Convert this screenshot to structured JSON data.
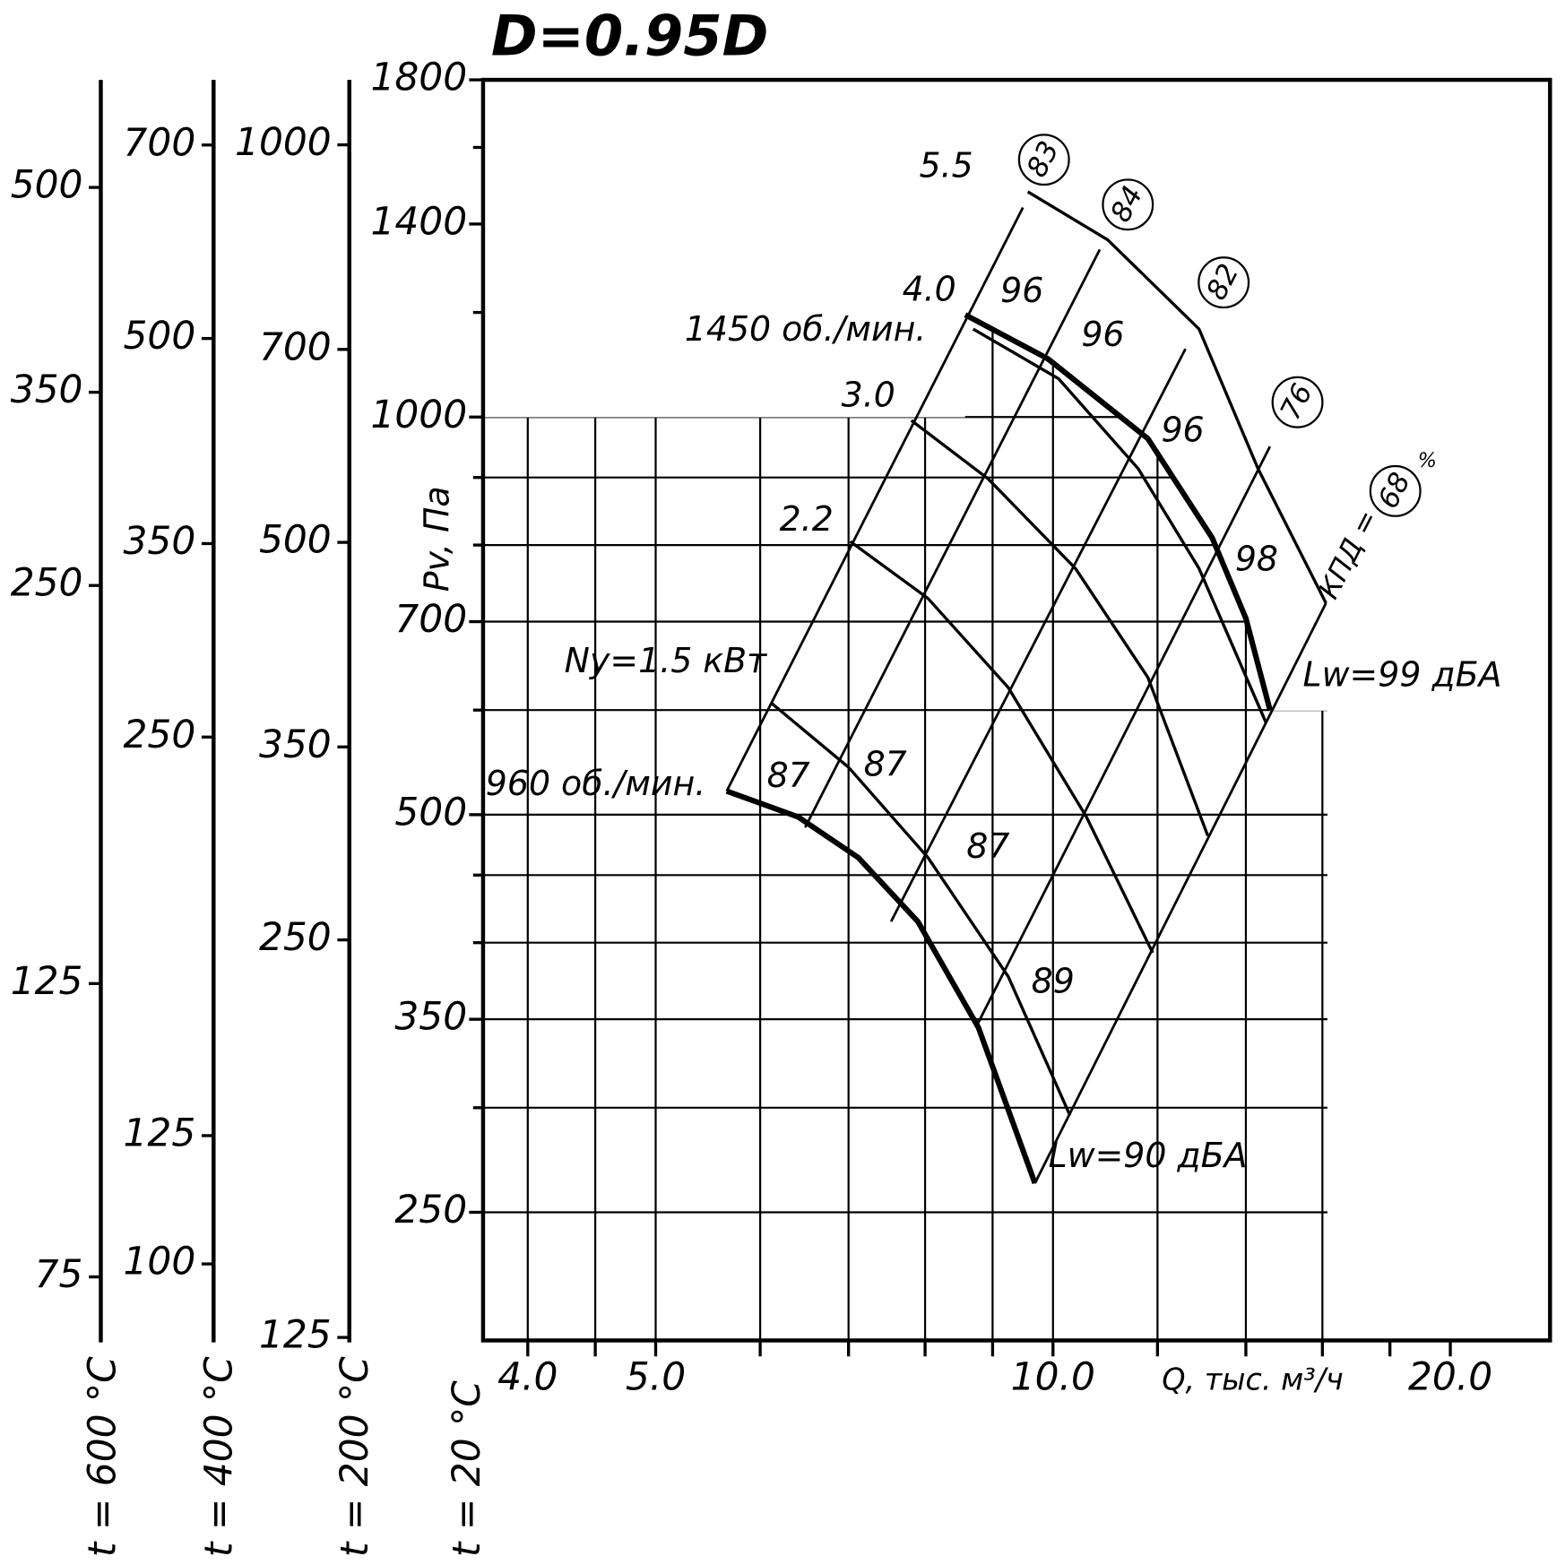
{
  "chart_data": {
    "type": "line",
    "title": "D=0.95D",
    "ylabel": "Pv, Па",
    "xlabel": "Q, тыс. м³/ч",
    "y_axis_caption": "t = 20 °C",
    "log_x": true,
    "log_y": true,
    "grid": true,
    "color": "#000000",
    "xlim": [
      3.7,
      23.8
    ],
    "xticks": [
      {
        "value": 4,
        "label": "4.0"
      },
      {
        "value": 5,
        "label": "5.0"
      },
      {
        "value": 10,
        "label": "10.0"
      },
      {
        "value": 20,
        "label": "20.0"
      }
    ],
    "xminor": [
      4.5,
      6,
      7,
      8,
      9,
      12,
      14,
      16,
      18
    ],
    "ylim": [
      201,
      1800
    ],
    "yticks": [
      250,
      350,
      500,
      700,
      1000,
      1400,
      1800
    ],
    "yminor": [
      300,
      400,
      450,
      600,
      800,
      900,
      1200,
      1600
    ],
    "series": [
      {
        "name": "1450 об./мин.",
        "bold": true,
        "x": [
          8.58,
          9.91,
          11.8,
          13.2,
          14.0,
          14.6
        ],
        "values": [
          1195,
          1107,
          963,
          810,
          704,
          600
        ]
      },
      {
        "name": "960 об./мин.",
        "bold": true,
        "x": [
          5.66,
          6.41,
          7.12,
          7.9,
          8.78,
          9.69
        ],
        "values": [
          521,
          498,
          464,
          415,
          345,
          263
        ]
      },
      {
        "name": "5.5",
        "bold": false,
        "x": [
          9.57,
          11.0,
          12.9,
          14.3,
          16.1
        ],
        "values": [
          1481,
          1362,
          1166,
          914,
          723
        ]
      },
      {
        "name": "4.0",
        "bold": false,
        "x": [
          8.7,
          10.1,
          11.6,
          12.9,
          14.5
        ],
        "values": [
          1166,
          1069,
          914,
          768,
          587
        ]
      },
      {
        "name": "3.0",
        "bold": false,
        "x": [
          7.81,
          8.93,
          10.4,
          11.8,
          13.1
        ],
        "values": [
          994,
          898,
          768,
          635,
          482
        ]
      },
      {
        "name": "2.2",
        "bold": false,
        "x": [
          7.02,
          8.04,
          9.25,
          10.6,
          11.9
        ],
        "values": [
          805,
          729,
          624,
          498,
          393
        ]
      },
      {
        "name": "Ny=1.5 кВт",
        "bold": false,
        "x": [
          6.11,
          7.0,
          8.04,
          9.25,
          10.3
        ],
        "values": [
          608,
          543,
          464,
          377,
          296
        ]
      }
    ],
    "efficiency_rays": {
      "label": "КПД =",
      "unit": "%",
      "rays": [
        {
          "name": 83,
          "x": [
            5.66,
            9.49
          ],
          "values": [
            521,
            1441
          ]
        },
        {
          "name": 84,
          "x": [
            6.49,
            10.85
          ],
          "values": [
            489,
            1339
          ]
        },
        {
          "name": 82,
          "x": [
            7.54,
            12.6
          ],
          "values": [
            415,
            1126
          ]
        },
        {
          "name": 76,
          "x": [
            8.74,
            14.6
          ],
          "values": [
            345,
            950
          ]
        },
        {
          "name": 68,
          "x": [
            9.69,
            16.1
          ],
          "values": [
            263,
            723
          ]
        }
      ]
    },
    "annotations": [
      "96",
      "96",
      "96",
      "98",
      "87",
      "87",
      "87",
      "89",
      "Lw=99 дБА",
      "Lw=90 дБА"
    ],
    "temperature_axes": [
      {
        "label": "t = 200 °C",
        "ylim": [
          125,
          1120
        ],
        "yticks": [
          125,
          250,
          350,
          500,
          700,
          1000
        ]
      },
      {
        "label": "t = 400 °C",
        "ylim": [
          88,
          784
        ],
        "yticks": [
          100,
          125,
          250,
          350,
          500,
          700
        ]
      },
      {
        "label": "t = 600 °C",
        "ylim": [
          67.5,
          603
        ],
        "yticks": [
          75,
          125,
          250,
          350,
          500
        ]
      }
    ]
  }
}
